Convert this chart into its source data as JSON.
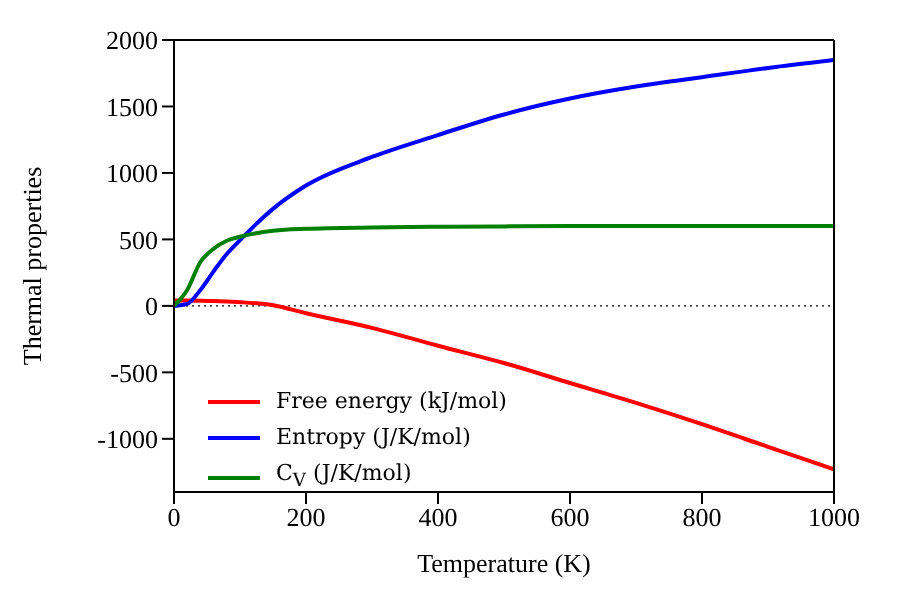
{
  "chart_data": {
    "type": "line",
    "xlabel": "Temperature (K)",
    "ylabel": "Thermal properties",
    "x": [
      0,
      20,
      40,
      60,
      80,
      100,
      150,
      200,
      300,
      400,
      500,
      600,
      700,
      800,
      900,
      1000
    ],
    "series": [
      {
        "name": "Free energy (kJ/mol)",
        "color": "#ff0000",
        "values": [
          40,
          40,
          39,
          37,
          33,
          28,
          5,
          -55,
          -165,
          -300,
          -430,
          -580,
          -730,
          -890,
          -1060,
          -1230
        ]
      },
      {
        "name": "Entropy (J/K/mol)",
        "color": "#0000ff",
        "values": [
          0,
          15,
          120,
          260,
          390,
          495,
          730,
          905,
          1120,
          1285,
          1440,
          1560,
          1650,
          1720,
          1790,
          1850
        ]
      },
      {
        "name": "C$_{V}$ (J/K/mol)",
        "color": "#008000",
        "values": [
          0,
          120,
          330,
          430,
          490,
          520,
          565,
          580,
          590,
          595,
          598,
          600,
          600,
          600,
          600,
          600
        ]
      }
    ],
    "xlim": [
      0,
      1000
    ],
    "xticks": [
      0,
      200,
      400,
      600,
      800,
      1000
    ],
    "ylim": [
      -1400,
      2000
    ],
    "yticks": [
      -1000,
      -500,
      0,
      500,
      1000,
      1500,
      2000
    ],
    "ref_lines": [
      {
        "axis": "y",
        "value": 0,
        "color": "#000000",
        "line_style": "dotted"
      }
    ],
    "legend": "bottom left",
    "grid": false,
    "marker": "none",
    "line_style": "solid"
  }
}
